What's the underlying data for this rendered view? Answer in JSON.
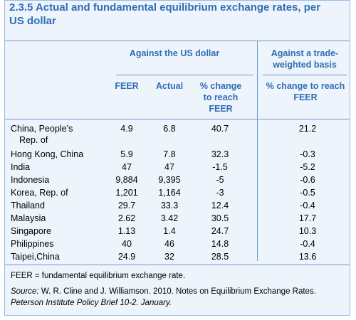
{
  "title_line1": "2.3.5  Actual and fundamental equilibrium exchange rates, per",
  "title_line2": "US dollar",
  "group_headers": {
    "us_dollar": "Against the US dollar",
    "trade_weighted_line1": "Against a trade-",
    "trade_weighted_line2": "weighted basis"
  },
  "column_headers": {
    "feer": "FEER",
    "actual": "Actual",
    "pct_line1": "% change",
    "pct_line2": "to reach",
    "pct_line3": "FEER",
    "tw_line1": "% change to reach",
    "tw_line2": "FEER"
  },
  "rows": [
    {
      "country_line1": "China, People’s",
      "country_line2": "Rep. of",
      "feer": "4.9",
      "actual": "6.8",
      "pct": "40.7",
      "tw": "21.2"
    },
    {
      "country": "Hong Kong, China",
      "feer": "5.9",
      "actual": "7.8",
      "pct": "32.3",
      "tw": "-0.3"
    },
    {
      "country": "India",
      "feer": "47",
      "actual": "47",
      "pct": "-1.5",
      "tw": "-5.2"
    },
    {
      "country": "Indonesia",
      "feer": "9,884",
      "actual": "9,395",
      "pct": "-5",
      "tw": "-0.6"
    },
    {
      "country": "Korea, Rep. of",
      "feer": "1,201",
      "actual": "1,164",
      "pct": "-3",
      "tw": "-0.5"
    },
    {
      "country": "Thailand",
      "feer": "29.7",
      "actual": "33.3",
      "pct": "12.4",
      "tw": "-0.4"
    },
    {
      "country": "Malaysia",
      "feer": "2.62",
      "actual": "3.42",
      "pct": "30.5",
      "tw": "17.7"
    },
    {
      "country": "Singapore",
      "feer": "1.13",
      "actual": "1.4",
      "pct": "24.7",
      "tw": "10.3"
    },
    {
      "country": "Philippines",
      "feer": "40",
      "actual": "46",
      "pct": "14.8",
      "tw": "-0.4"
    },
    {
      "country": "Taipei,China",
      "feer": "24.9",
      "actual": "32",
      "pct": "28.5",
      "tw": "13.6"
    }
  ],
  "footnote": "FEER = fundamental equilibrium exchange rate.",
  "source_label": "Source:",
  "source_text": " W. R. Cline and J. Williamson. 2010.  Notes on Equilibrium Exchange Rates.",
  "source_line2": "Peterson Institute Policy Brief 10-2. January.",
  "colors": {
    "accent": "#2f6db5",
    "background": "#eef4fb",
    "rule": "#6d97cc"
  }
}
